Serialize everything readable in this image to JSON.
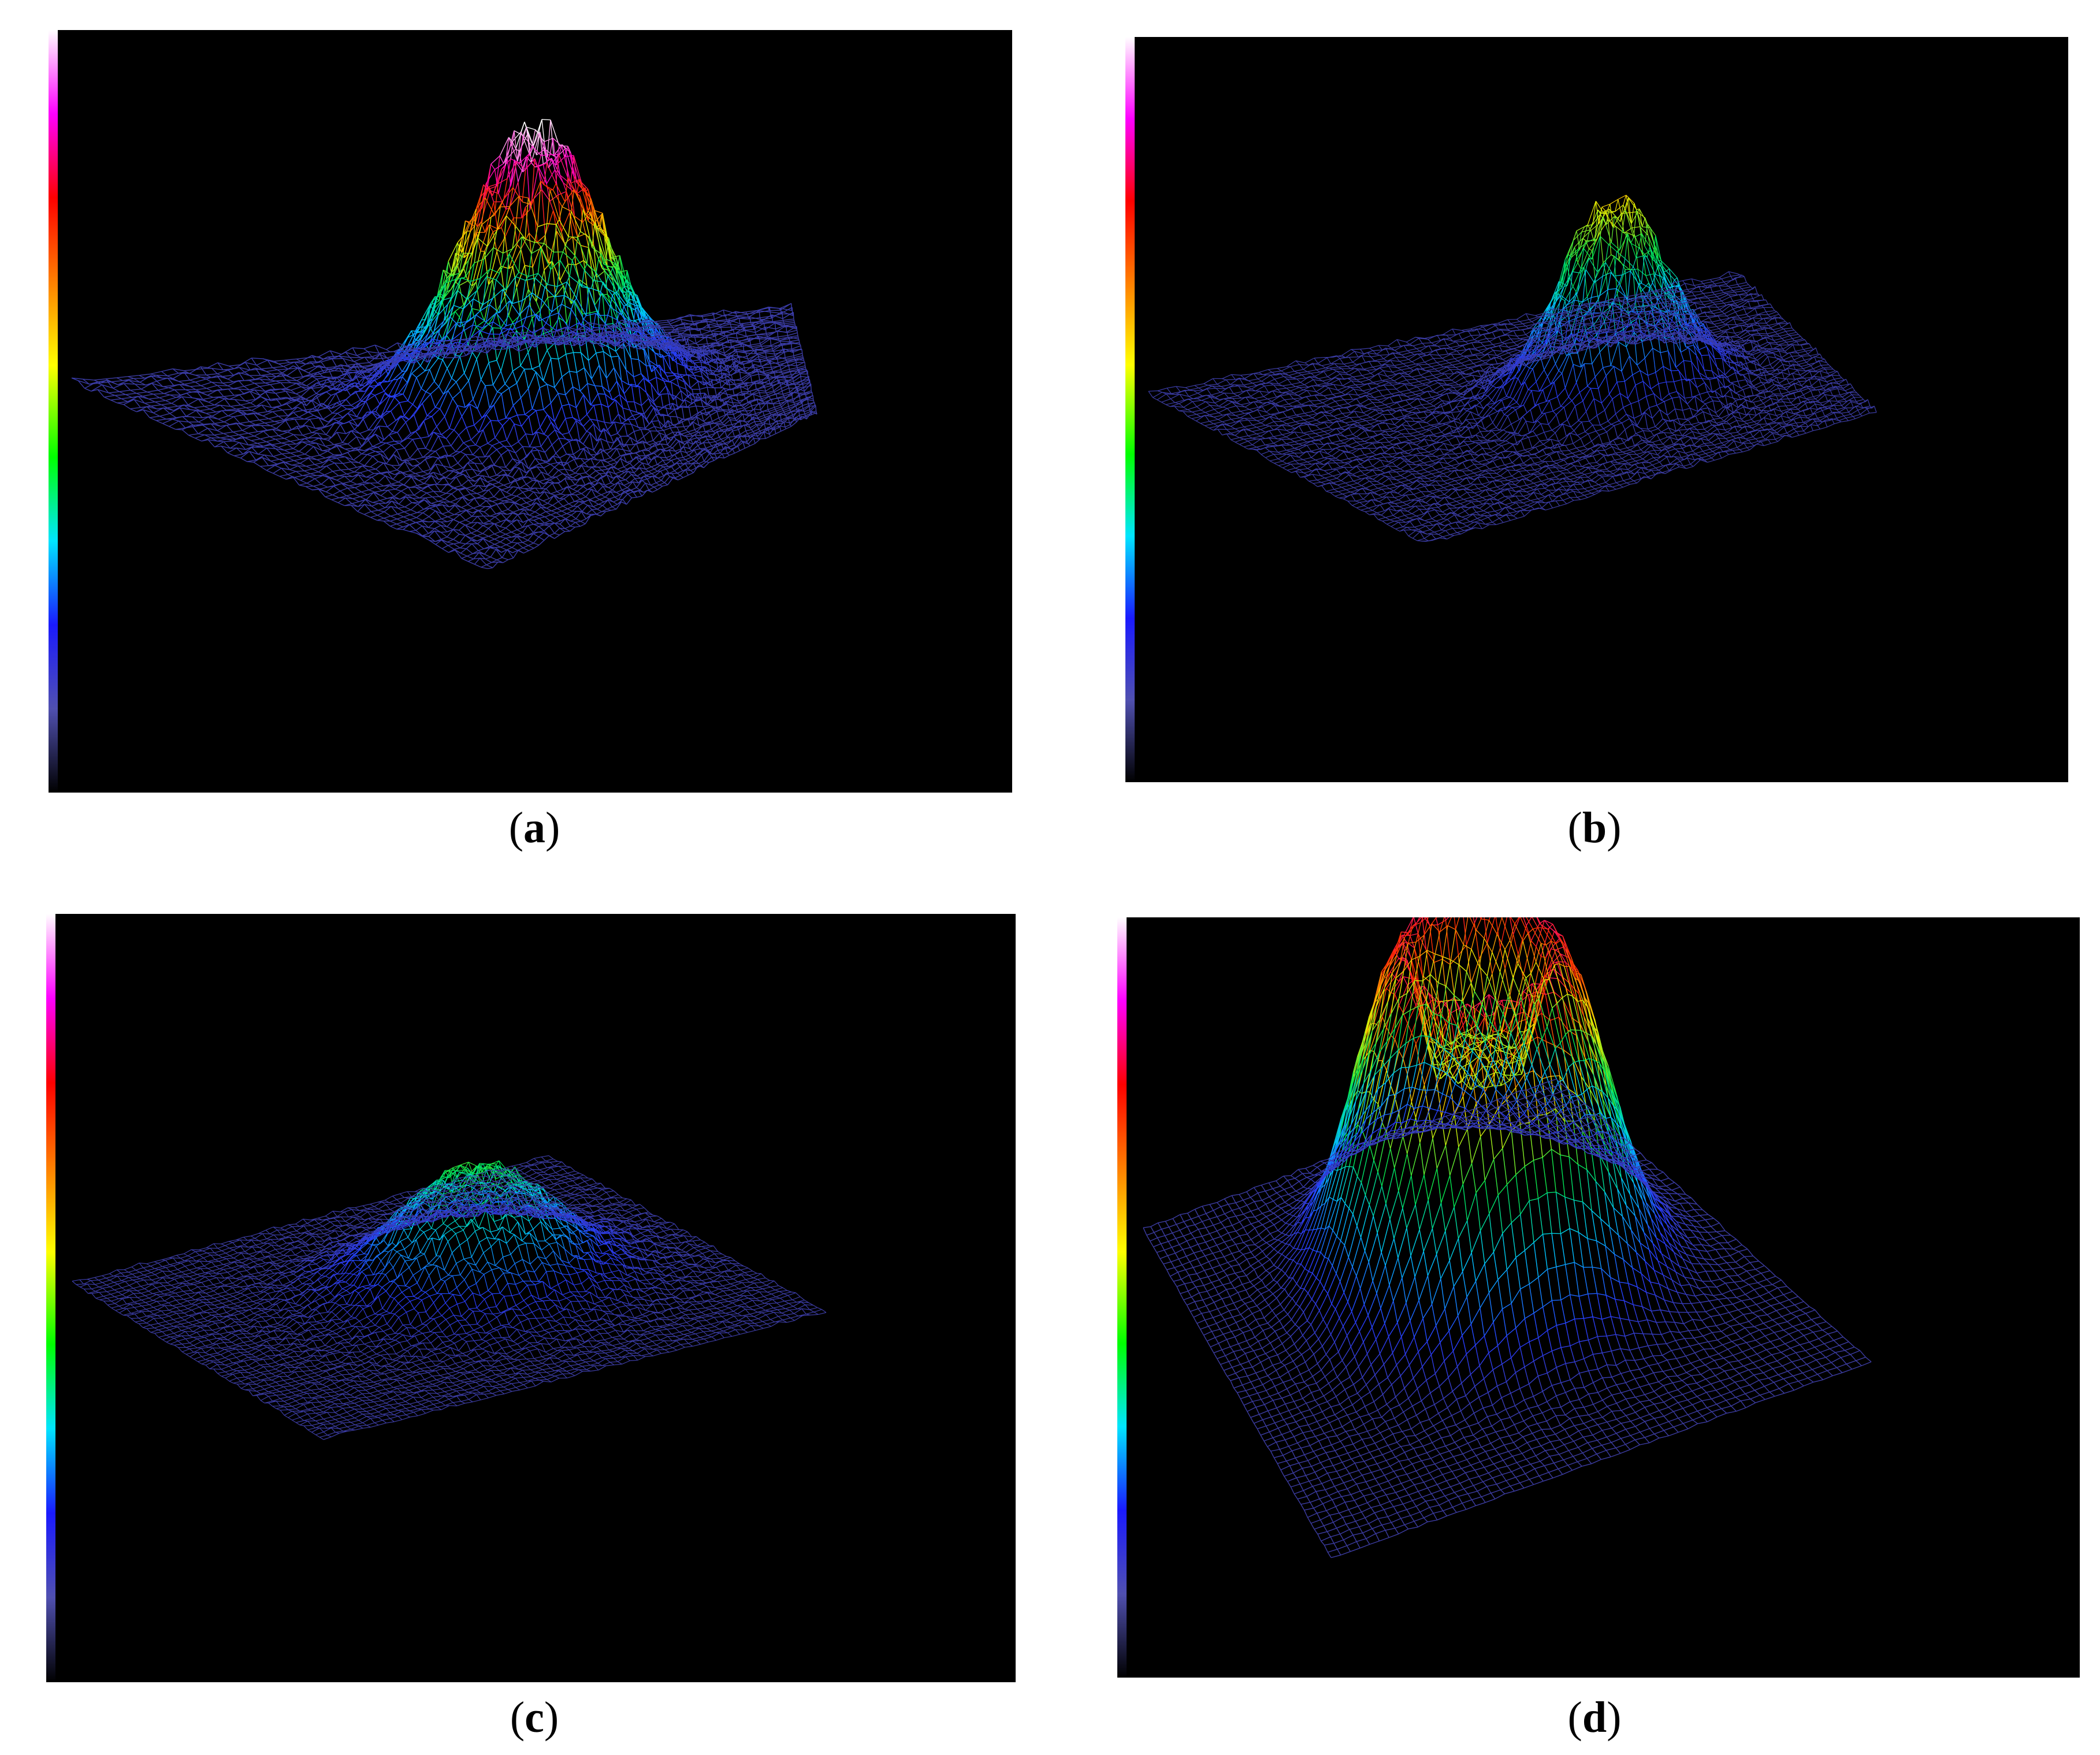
{
  "panels": [
    {
      "id": "a",
      "caption": "a",
      "shape": "gaussian",
      "peak_color": "white-magenta",
      "colorbar": [
        "#000000",
        "#5050b0",
        "#1a1aff",
        "#00e5ff",
        "#00ff00",
        "#ffff00",
        "#ff7f00",
        "#ff0000",
        "#ff00ff",
        "#ffffff"
      ]
    },
    {
      "id": "b",
      "caption": "b",
      "shape": "gaussian",
      "peak_color": "yellow",
      "colorbar": [
        "#000000",
        "#5050b0",
        "#1a1aff",
        "#00e5ff",
        "#00ff00",
        "#ffff00",
        "#ff7f00",
        "#ff0000",
        "#ff00ff",
        "#ffffff"
      ]
    },
    {
      "id": "c",
      "caption": "c",
      "shape": "gaussian",
      "peak_color": "green",
      "colorbar": [
        "#000000",
        "#5050b0",
        "#1a1aff",
        "#00e5ff",
        "#00ff00",
        "#ffff00",
        "#ff7f00",
        "#ff0000",
        "#ff00ff",
        "#ffffff"
      ]
    },
    {
      "id": "d",
      "caption": "d",
      "shape": "ring",
      "peak_color": "red",
      "colorbar": [
        "#000000",
        "#5050b0",
        "#1a1aff",
        "#00e5ff",
        "#00ff00",
        "#ffff00",
        "#ff7f00",
        "#ff0000",
        "#ff00ff",
        "#ffffff"
      ]
    }
  ]
}
